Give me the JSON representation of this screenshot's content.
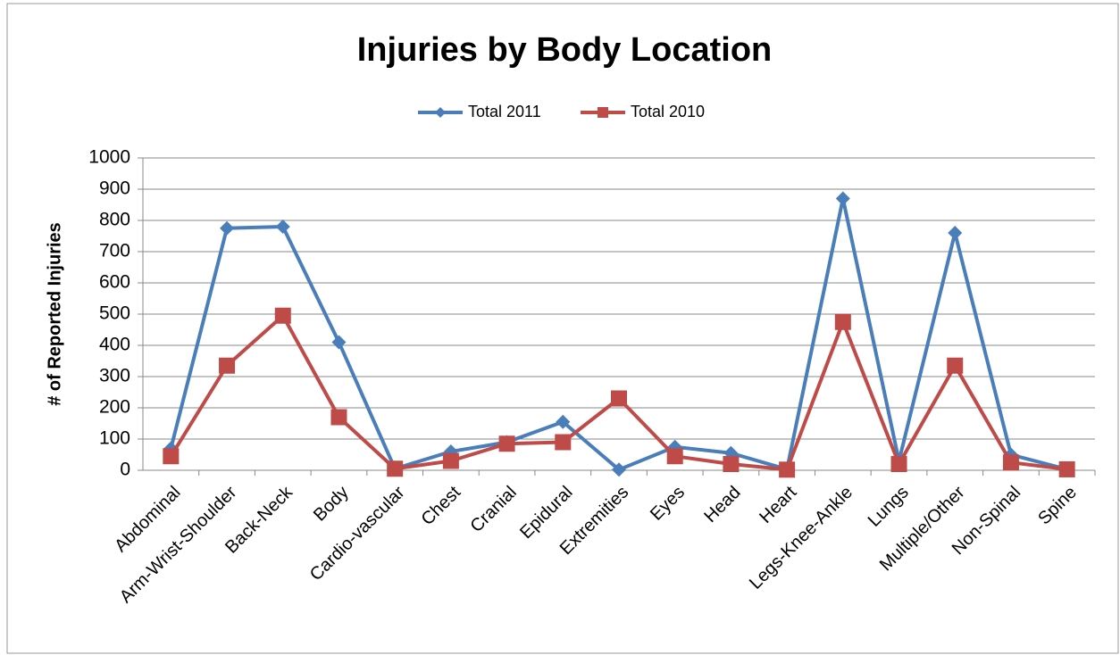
{
  "chart_data": {
    "type": "line",
    "title": "Injuries by Body Location",
    "y_label": "# of Reported Injuries",
    "categories": [
      "Abdominal",
      "Arm-Wrist-Shoulder",
      "Back-Neck",
      "Body",
      "Cardio-vascular",
      "Chest",
      "Cranial",
      "Epidural",
      "Extremities",
      "Eyes",
      "Head",
      "Heart",
      "Legs-Knee-Ankle",
      "Lungs",
      "Multiple/Other",
      "Non-Spinal",
      "Spine"
    ],
    "series": [
      {
        "name": "Total 2011",
        "color": "#4a7ebb",
        "marker": "diamond",
        "values": [
          70,
          775,
          780,
          410,
          5,
          60,
          90,
          155,
          2,
          75,
          55,
          3,
          870,
          30,
          760,
          50,
          3
        ]
      },
      {
        "name": "Total 2010",
        "color": "#be4b48",
        "marker": "square",
        "values": [
          45,
          335,
          495,
          170,
          5,
          30,
          85,
          90,
          230,
          45,
          20,
          2,
          475,
          20,
          335,
          25,
          3
        ]
      }
    ],
    "ylim": [
      0,
      1000
    ],
    "yticks": [
      0,
      100,
      200,
      300,
      400,
      500,
      600,
      700,
      800,
      900,
      1000
    ],
    "grid": true,
    "legend": "top"
  }
}
